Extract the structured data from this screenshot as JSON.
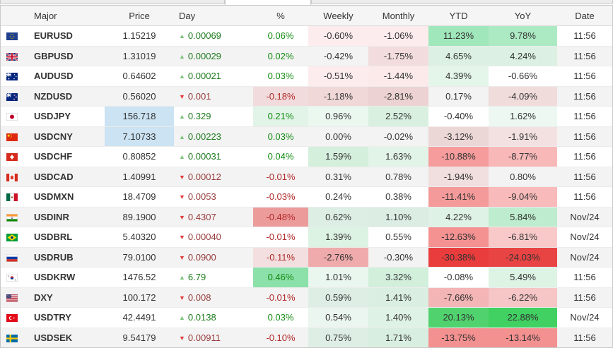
{
  "colors": {
    "price_flash_bg": "#cbe3f3",
    "day_up_text": "#1e7b1e",
    "day_down_text": "#993b3b",
    "pct_positive_text": "#128a12",
    "pct_negative_text": "#b22b2b",
    "heat_strong_red": "#e93c3c",
    "heat_strong_green": "#44d163",
    "header_bg": "#f5f5f5",
    "row_alt_bg": "#f3f3f3"
  },
  "table": {
    "columns": [
      "Major",
      "Price",
      "Day",
      "%",
      "Weekly",
      "Monthly",
      "YTD",
      "YoY",
      "Date"
    ],
    "rows": [
      {
        "flag": "eu",
        "symbol": "EURUSD",
        "price": "1.15219",
        "price_highlight": false,
        "day": {
          "dir": "up",
          "value": "0.00069"
        },
        "pct": {
          "value": "0.06%",
          "positive": true,
          "bg": null
        },
        "weekly": {
          "value": "-0.60%",
          "bg": "#fdeced"
        },
        "monthly": {
          "value": "-1.06%",
          "bg": "#fdeced"
        },
        "ytd": {
          "value": "11.23%",
          "bg": "#a0e7bb"
        },
        "yoy": {
          "value": "9.78%",
          "bg": "#aceac3"
        },
        "date": "11:56"
      },
      {
        "flag": "gb",
        "symbol": "GBPUSD",
        "price": "1.31019",
        "price_highlight": false,
        "day": {
          "dir": "up",
          "value": "0.00029"
        },
        "pct": {
          "value": "0.02%",
          "positive": true,
          "bg": null
        },
        "weekly": {
          "value": "-0.42%",
          "bg": null
        },
        "monthly": {
          "value": "-1.75%",
          "bg": "#f3dcdd"
        },
        "ytd": {
          "value": "4.65%",
          "bg": "#dcf1e3"
        },
        "yoy": {
          "value": "4.24%",
          "bg": "#dcf1e3"
        },
        "date": "11:56"
      },
      {
        "flag": "au",
        "symbol": "AUDUSD",
        "price": "0.64602",
        "price_highlight": false,
        "day": {
          "dir": "up",
          "value": "0.00021"
        },
        "pct": {
          "value": "0.03%",
          "positive": true,
          "bg": null
        },
        "weekly": {
          "value": "-0.51%",
          "bg": "#fdeced"
        },
        "monthly": {
          "value": "-1.44%",
          "bg": "#fceaea"
        },
        "ytd": {
          "value": "4.39%",
          "bg": "#e4f5ea"
        },
        "yoy": {
          "value": "-0.66%",
          "bg": null
        },
        "date": "11:56"
      },
      {
        "flag": "nz",
        "symbol": "NZDUSD",
        "price": "0.56020",
        "price_highlight": false,
        "day": {
          "dir": "down",
          "value": "0.001"
        },
        "pct": {
          "value": "-0.18%",
          "positive": false,
          "bg": "#f1dbdc"
        },
        "weekly": {
          "value": "-1.18%",
          "bg": "#f0d8d8"
        },
        "monthly": {
          "value": "-2.81%",
          "bg": "#ecd2d2"
        },
        "ytd": {
          "value": "0.17%",
          "bg": null
        },
        "yoy": {
          "value": "-4.09%",
          "bg": "#f1dcdc"
        },
        "date": "11:56"
      },
      {
        "flag": "jp",
        "symbol": "USDJPY",
        "price": "156.718",
        "price_highlight": true,
        "day": {
          "dir": "up",
          "value": "0.329"
        },
        "pct": {
          "value": "0.21%",
          "positive": true,
          "bg": "#e2f4e8"
        },
        "weekly": {
          "value": "0.96%",
          "bg": "#ebf8f0"
        },
        "monthly": {
          "value": "2.52%",
          "bg": "#d9f0e0"
        },
        "ytd": {
          "value": "-0.40%",
          "bg": null
        },
        "yoy": {
          "value": "1.62%",
          "bg": "#ecf8f1"
        },
        "date": "11:56"
      },
      {
        "flag": "cn",
        "symbol": "USDCNY",
        "price": "7.10733",
        "price_highlight": true,
        "day": {
          "dir": "up",
          "value": "0.00223"
        },
        "pct": {
          "value": "0.03%",
          "positive": true,
          "bg": null
        },
        "weekly": {
          "value": "0.00%",
          "bg": null
        },
        "monthly": {
          "value": "-0.02%",
          "bg": null
        },
        "ytd": {
          "value": "-3.12%",
          "bg": "#ecd7d7"
        },
        "yoy": {
          "value": "-1.91%",
          "bg": "#f3e1e1"
        },
        "date": "11:56"
      },
      {
        "flag": "ch",
        "symbol": "USDCHF",
        "price": "0.80852",
        "price_highlight": false,
        "day": {
          "dir": "up",
          "value": "0.00031"
        },
        "pct": {
          "value": "0.04%",
          "positive": true,
          "bg": null
        },
        "weekly": {
          "value": "1.59%",
          "bg": "#d5efdd"
        },
        "monthly": {
          "value": "1.63%",
          "bg": "#e2f4e8"
        },
        "ytd": {
          "value": "-10.88%",
          "bg": "#f69c9c"
        },
        "yoy": {
          "value": "-8.77%",
          "bg": "#f8b8b8"
        },
        "date": "11:56"
      },
      {
        "flag": "ca",
        "symbol": "USDCAD",
        "price": "1.40991",
        "price_highlight": false,
        "day": {
          "dir": "down",
          "value": "0.00012"
        },
        "pct": {
          "value": "-0.01%",
          "positive": false,
          "bg": null
        },
        "weekly": {
          "value": "0.31%",
          "bg": null
        },
        "monthly": {
          "value": "0.78%",
          "bg": null
        },
        "ytd": {
          "value": "-1.94%",
          "bg": "#f1dede"
        },
        "yoy": {
          "value": "0.80%",
          "bg": null
        },
        "date": "11:56"
      },
      {
        "flag": "mx",
        "symbol": "USDMXN",
        "price": "18.4709",
        "price_highlight": false,
        "day": {
          "dir": "down",
          "value": "0.0053"
        },
        "pct": {
          "value": "-0.03%",
          "positive": false,
          "bg": null
        },
        "weekly": {
          "value": "0.24%",
          "bg": null
        },
        "monthly": {
          "value": "0.38%",
          "bg": null
        },
        "ytd": {
          "value": "-11.41%",
          "bg": "#f59a9a"
        },
        "yoy": {
          "value": "-9.04%",
          "bg": "#f8baba"
        },
        "date": "11:56"
      },
      {
        "flag": "in",
        "symbol": "USDINR",
        "price": "89.1900",
        "price_highlight": false,
        "day": {
          "dir": "down",
          "value": "0.4307"
        },
        "pct": {
          "value": "-0.48%",
          "positive": false,
          "bg": "#ec9b9b"
        },
        "weekly": {
          "value": "0.62%",
          "bg": "#ddeee4"
        },
        "monthly": {
          "value": "1.10%",
          "bg": "#dceee3"
        },
        "ytd": {
          "value": "4.22%",
          "bg": "#dff2e6"
        },
        "yoy": {
          "value": "5.84%",
          "bg": "#bdecce"
        },
        "date": "Nov/24"
      },
      {
        "flag": "br",
        "symbol": "USDBRL",
        "price": "5.40320",
        "price_highlight": false,
        "day": {
          "dir": "down",
          "value": "0.00040"
        },
        "pct": {
          "value": "-0.01%",
          "positive": false,
          "bg": null
        },
        "weekly": {
          "value": "1.39%",
          "bg": "#dcf2e2"
        },
        "monthly": {
          "value": "0.55%",
          "bg": null
        },
        "ytd": {
          "value": "-12.63%",
          "bg": "#f49191"
        },
        "yoy": {
          "value": "-6.81%",
          "bg": "#f9c9c9"
        },
        "date": "Nov/24"
      },
      {
        "flag": "ru",
        "symbol": "USDRUB",
        "price": "79.0100",
        "price_highlight": false,
        "day": {
          "dir": "down",
          "value": "0.0900"
        },
        "pct": {
          "value": "-0.11%",
          "positive": false,
          "bg": "#f3dfdf"
        },
        "weekly": {
          "value": "-2.76%",
          "bg": "#efabab"
        },
        "monthly": {
          "value": "-0.30%",
          "bg": null
        },
        "ytd": {
          "value": "-30.38%",
          "bg": "#e93c3c"
        },
        "yoy": {
          "value": "-24.03%",
          "bg": "#e94444"
        },
        "date": "Nov/24"
      },
      {
        "flag": "kr",
        "symbol": "USDKRW",
        "price": "1476.52",
        "price_highlight": false,
        "day": {
          "dir": "up",
          "value": "6.79"
        },
        "pct": {
          "value": "0.46%",
          "positive": true,
          "bg": "#8ce0a9"
        },
        "weekly": {
          "value": "1.01%",
          "bg": "#e9f7ee"
        },
        "monthly": {
          "value": "3.32%",
          "bg": "#d2efdc"
        },
        "ytd": {
          "value": "-0.08%",
          "bg": null
        },
        "yoy": {
          "value": "5.49%",
          "bg": "#ddf3e4"
        },
        "date": "11:56"
      },
      {
        "flag": "us",
        "symbol": "DXY",
        "price": "100.172",
        "price_highlight": false,
        "day": {
          "dir": "down",
          "value": "0.008"
        },
        "pct": {
          "value": "-0.01%",
          "positive": false,
          "bg": null
        },
        "weekly": {
          "value": "0.59%",
          "bg": "#deeee5"
        },
        "monthly": {
          "value": "1.41%",
          "bg": "#daefe1"
        },
        "ytd": {
          "value": "-7.66%",
          "bg": "#f3b5b5"
        },
        "yoy": {
          "value": "-6.22%",
          "bg": "#f6c5c5"
        },
        "date": "11:56"
      },
      {
        "flag": "tr",
        "symbol": "USDTRY",
        "price": "42.4491",
        "price_highlight": false,
        "day": {
          "dir": "up",
          "value": "0.0138"
        },
        "pct": {
          "value": "0.03%",
          "positive": true,
          "bg": null
        },
        "weekly": {
          "value": "0.54%",
          "bg": "#eaf6ef"
        },
        "monthly": {
          "value": "1.40%",
          "bg": "#def2e5"
        },
        "ytd": {
          "value": "20.13%",
          "bg": "#50d36e"
        },
        "yoy": {
          "value": "22.88%",
          "bg": "#41d162"
        },
        "date": "Nov/24"
      },
      {
        "flag": "se",
        "symbol": "USDSEK",
        "price": "9.54179",
        "price_highlight": false,
        "day": {
          "dir": "down",
          "value": "0.00911"
        },
        "pct": {
          "value": "-0.10%",
          "positive": false,
          "bg": null
        },
        "weekly": {
          "value": "0.75%",
          "bg": "#deeee5"
        },
        "monthly": {
          "value": "1.71%",
          "bg": "#d8eee0"
        },
        "ytd": {
          "value": "-13.75%",
          "bg": "#f39090"
        },
        "yoy": {
          "value": "-13.14%",
          "bg": "#f39090"
        },
        "date": "11:56"
      }
    ]
  }
}
